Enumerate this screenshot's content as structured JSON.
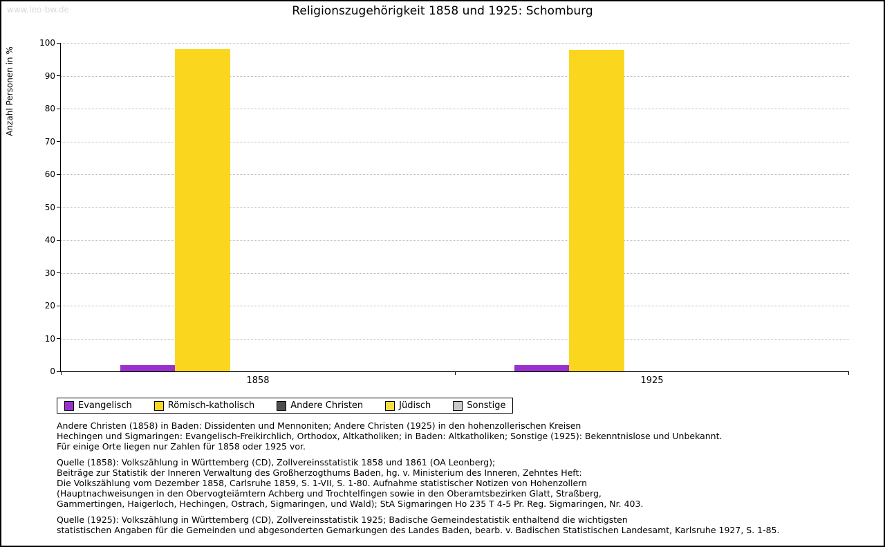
{
  "watermark": "www.leo-bw.de",
  "chart_data": {
    "type": "bar",
    "title": "Religionszugehörigkeit 1858 und 1925: Schomburg",
    "xlabel": "",
    "ylabel": "Anzahl Personen in %",
    "ylim": [
      0,
      100
    ],
    "ytick_step": 10,
    "grid": true,
    "legend_position": "bottom",
    "categories": [
      "1858",
      "1925"
    ],
    "series": [
      {
        "name": "Evangelisch",
        "color": "#9a31ce",
        "values": [
          1.8,
          2.0
        ]
      },
      {
        "name": "Römisch-katholisch",
        "color": "#fad71e",
        "values": [
          98.2,
          98.0
        ]
      },
      {
        "name": "Andere Christen",
        "color": "#4d4d4d",
        "values": [
          0,
          0
        ]
      },
      {
        "name": "Jüdisch",
        "color": "#f6de43",
        "values": [
          0,
          0
        ]
      },
      {
        "name": "Sonstige",
        "color": "#c9c9c9",
        "values": [
          0,
          0
        ]
      }
    ]
  },
  "footnotes": [
    [
      "Andere Christen (1858) in Baden: Dissidenten und Mennoniten; Andere Christen (1925) in den hohenzollerischen Kreisen",
      "Hechingen und Sigmaringen: Evangelisch-Freikirchlich, Orthodox, Altkatholiken; in Baden: Altkatholiken; Sonstige (1925): Bekenntnislose und Unbekannt.",
      "Für einige Orte liegen nur Zahlen für 1858 oder 1925 vor."
    ],
    [
      "Quelle (1858): Volkszählung in Württemberg (CD), Zollvereinsstatistik 1858 und 1861 (OA Leonberg);",
      "Beiträge zur Statistik der Inneren Verwaltung des Großherzogthums Baden, hg. v. Ministerium des Inneren, Zehntes Heft:",
      "Die Volkszählung vom Dezember 1858, Carlsruhe 1859, S. 1-VII, S. 1-80. Aufnahme statistischer Notizen von Hohenzollern",
      "(Hauptnachweisungen in den Obervogteiämtern Achberg und Trochtelfingen sowie in den Oberamtsbezirken Glatt, Straßberg,",
      "Gammertingen, Haigerloch, Hechingen, Ostrach, Sigmaringen, und Wald); StA Sigmaringen Ho 235 T 4-5 Pr. Reg. Sigmaringen, Nr. 403."
    ],
    [
      "Quelle (1925): Volkszählung in Württemberg (CD), Zollvereinsstatistik 1925; Badische Gemeindestatistik enthaltend die wichtigsten",
      "statistischen Angaben für die Gemeinden und abgesonderten Gemarkungen des Landes Baden, bearb. v. Badischen Statistischen Landesamt, Karlsruhe 1927, S. 1-85."
    ]
  ]
}
